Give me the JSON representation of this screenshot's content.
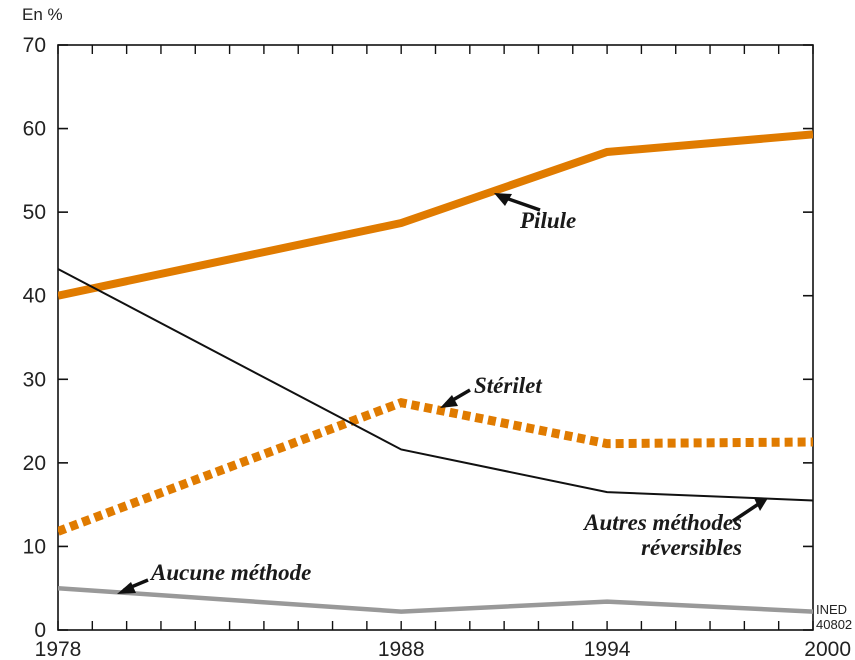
{
  "chart_data": {
    "type": "line",
    "ylabel": "En %",
    "xlim": [
      1978,
      2000
    ],
    "ylim": [
      0,
      70
    ],
    "x_ticks": [
      1978,
      1988,
      1994,
      2000
    ],
    "y_ticks": [
      0,
      10,
      20,
      30,
      40,
      50,
      60,
      70
    ],
    "grid": false,
    "series": [
      {
        "name": "Pilule",
        "x": [
          1978,
          1988,
          1994,
          2000
        ],
        "values": [
          40,
          48.7,
          57.2,
          59.3
        ],
        "color": "#e07b00",
        "style": "solid-thick"
      },
      {
        "name": "Stérilet",
        "x": [
          1978,
          1988,
          1994,
          2000
        ],
        "values": [
          11.8,
          27.2,
          22.3,
          22.5
        ],
        "color": "#e07b00",
        "style": "dotted-thick"
      },
      {
        "name": "Autres méthodes réversibles",
        "x": [
          1978,
          1988,
          1994,
          2000
        ],
        "values": [
          43.2,
          21.6,
          16.5,
          15.5
        ],
        "color": "#111111",
        "style": "solid-thin"
      },
      {
        "name": "Aucune méthode",
        "x": [
          1978,
          1988,
          1994,
          2000
        ],
        "values": [
          5,
          2.2,
          3.4,
          2.2
        ],
        "color": "#999999",
        "style": "solid-medium"
      }
    ],
    "annotations": {
      "pilule": "Pilule",
      "sterilet": "Stérilet",
      "autres_line1": "Autres méthodes",
      "autres_line2": "réversibles",
      "aucune": "Aucune méthode"
    },
    "credit_line1": "INED",
    "credit_line2": "40802"
  }
}
